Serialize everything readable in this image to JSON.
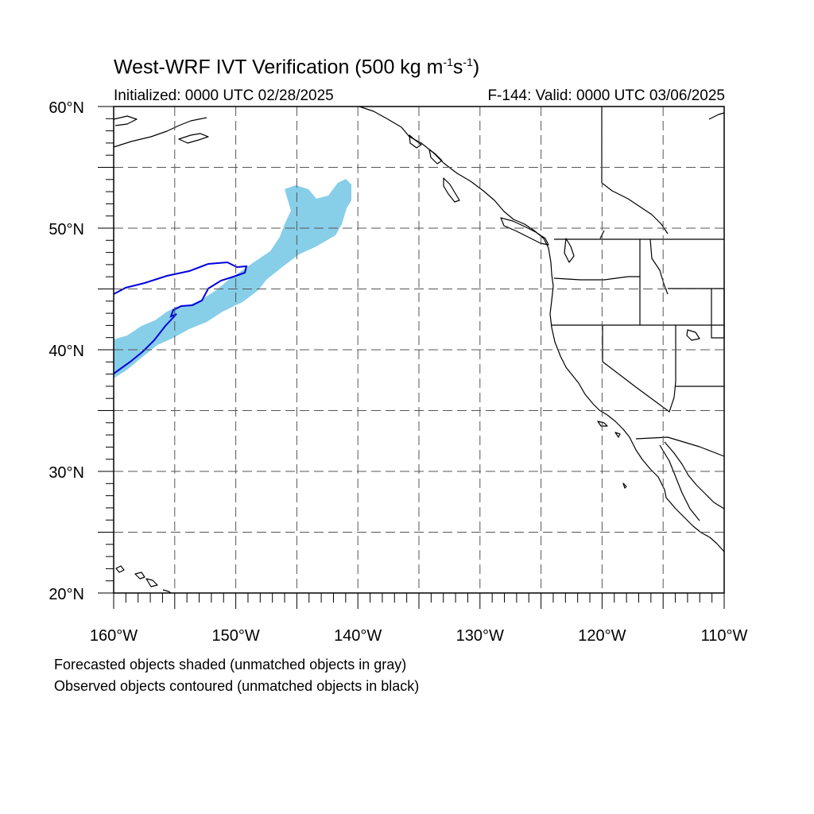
{
  "title": {
    "prefix": "West-WRF IVT Verification (500 kg m",
    "exp1": "-1",
    "mid": "s",
    "exp2": "-1",
    "suffix": ")"
  },
  "subtitle": {
    "initialized": "Initialized: 0000 UTC 02/28/2025",
    "valid": "F-144: Valid: 0000 UTC 03/06/2025"
  },
  "notes": [
    "Forecasted objects shaded (unmatched objects in gray)",
    "Observed objects contoured (unmatched objects in black)"
  ],
  "map": {
    "lon_range": [
      -160,
      -110
    ],
    "lat_range": [
      20,
      60
    ],
    "lon_labels": [
      "160°W",
      "150°W",
      "140°W",
      "130°W",
      "120°W",
      "110°W"
    ],
    "lat_labels": [
      "20°N",
      "30°N",
      "40°N",
      "50°N",
      "60°N"
    ],
    "grid_spacing_deg": 5,
    "grid_style": "dashed",
    "colors": {
      "forecast_object": "#87CEE8",
      "observed_contour": "#0000DD",
      "coastline": "#000000",
      "grid": "#555555"
    }
  }
}
